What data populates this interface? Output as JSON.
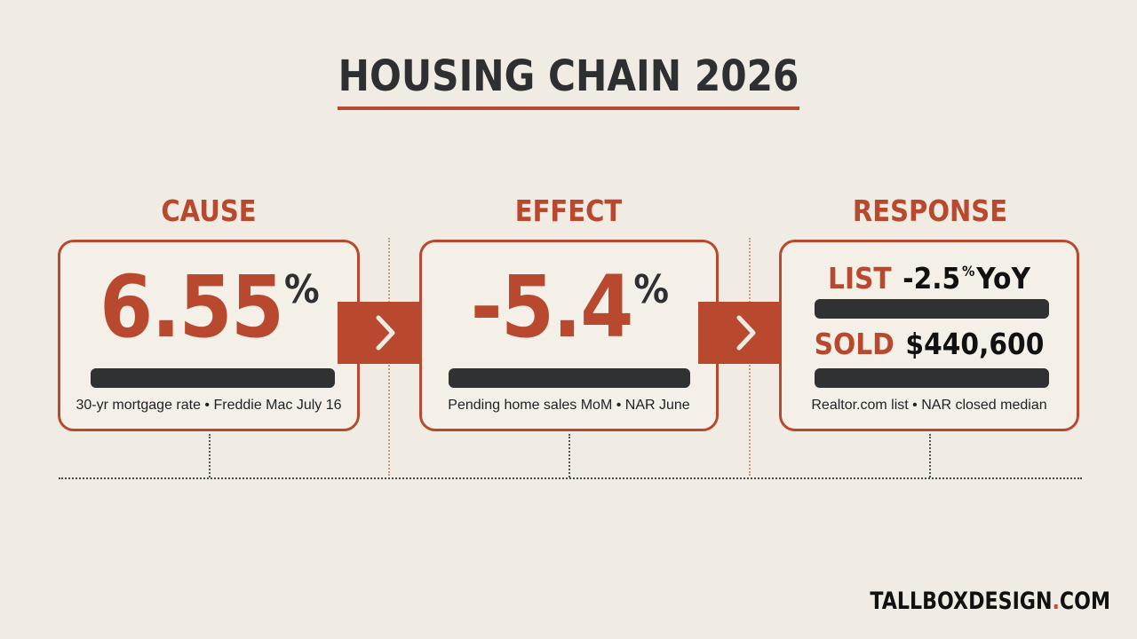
{
  "title": "HOUSING CHAIN 2026",
  "columns": [
    {
      "label": "CAUSE",
      "value": "6.55",
      "unit": "%",
      "caption": "30-yr mortgage rate • Freddie Mac July 16"
    },
    {
      "label": "EFFECT",
      "value": "-5.4",
      "unit": "%",
      "caption": "Pending home sales MoM • NAR June"
    },
    {
      "label": "RESPONSE",
      "list_label": "LIST",
      "list_value": "-2.5",
      "list_unit": "%",
      "list_suffix": "YoY",
      "sold_label": "SOLD",
      "sold_value": "$440,600",
      "caption": "Realtor.com list • NAR closed median"
    }
  ],
  "brand": {
    "name": "TALLBOXDESIGN",
    "dot": ".",
    "tld": "COM"
  },
  "colors": {
    "accent": "#b8492f",
    "background": "#f1ece3",
    "dark": "#2f3133"
  },
  "icons": [
    "chevron-right-icon"
  ]
}
